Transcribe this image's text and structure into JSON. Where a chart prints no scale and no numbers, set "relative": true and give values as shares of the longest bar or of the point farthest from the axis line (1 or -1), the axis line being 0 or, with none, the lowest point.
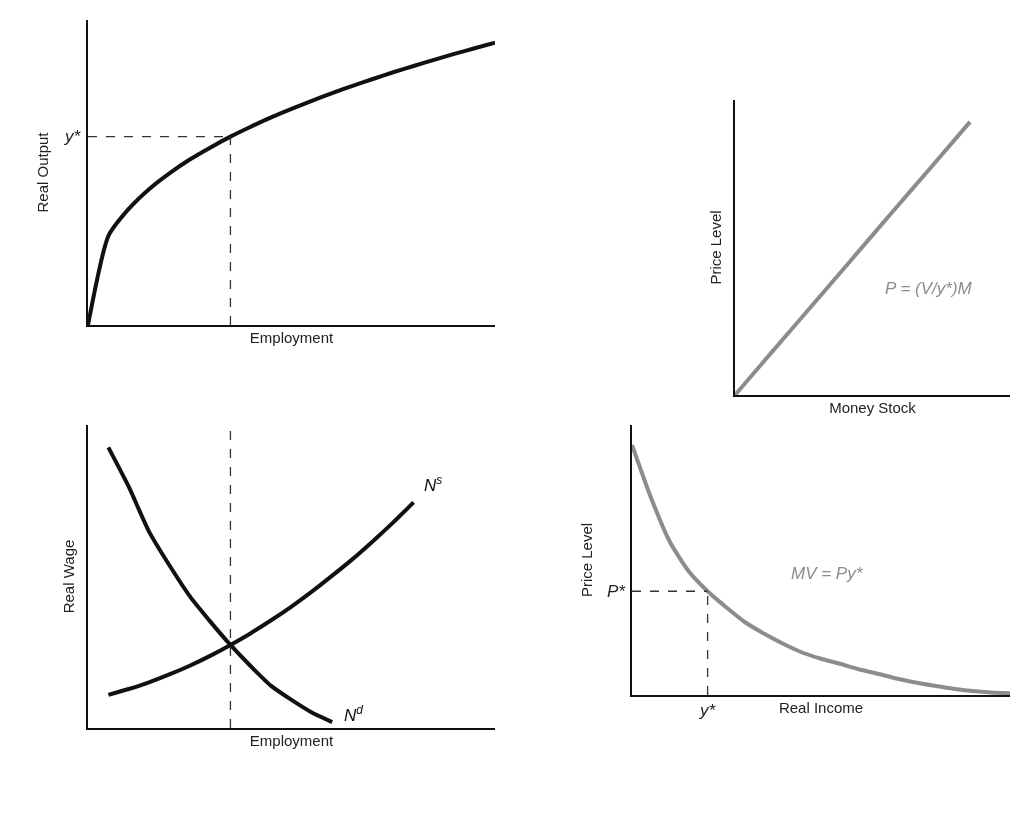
{
  "chart_data": [
    {
      "type": "line",
      "relative": true,
      "tick_labels": false,
      "ylabel": "Real Output",
      "xlabel": "Employment",
      "categories": [
        null,
        null,
        null,
        null,
        null,
        null,
        null,
        null,
        null,
        null,
        null,
        null,
        null,
        null,
        null,
        null,
        null,
        null,
        null,
        null,
        null
      ],
      "series": [
        {
          "color": "#111111",
          "values": [
            0,
            0.315,
            0.411,
            0.481,
            0.537,
            0.586,
            0.628,
            0.667,
            0.702,
            0.735,
            0.765,
            0.794,
            0.821,
            0.847,
            0.871,
            0.895,
            0.917,
            0.939,
            0.96,
            0.98,
            1.0
          ]
        }
      ],
      "ref_lines": [
        {
          "axis": "y",
          "value": 0.667,
          "label": "y*",
          "line_style": "dashed"
        },
        {
          "axis": "x",
          "line_style": "dashed"
        }
      ]
    },
    {
      "type": "line",
      "relative": true,
      "tick_labels": false,
      "ylabel": "Price Level",
      "xlabel": "Money Stock",
      "categories": [
        null,
        null,
        null,
        null,
        null,
        null,
        null
      ],
      "series": [
        {
          "name": "P = (V/y*)M",
          "color": "#8c8c8c",
          "values": [
            0,
            0.167,
            0.333,
            0.5,
            0.667,
            0.833,
            1.0
          ]
        }
      ]
    },
    {
      "type": "line",
      "relative": true,
      "tick_labels": false,
      "ylabel": "Real Wage",
      "xlabel": "Employment",
      "categories": [
        null,
        null,
        null,
        null,
        null,
        null,
        null,
        null,
        null,
        null,
        null,
        null,
        null,
        null,
        null,
        null
      ],
      "series": [
        {
          "name": "N$^{d}$",
          "color": "#111111",
          "values": [
            1.0,
            0.86,
            0.7,
            0.58,
            0.47,
            0.38,
            0.296,
            0.22,
            0.15,
            0.1,
            0.055,
            0.021,
            null,
            null,
            null,
            null
          ]
        },
        {
          "name": "N$^{s}$",
          "color": "#111111",
          "values": [
            0.118,
            0.139,
            0.163,
            0.191,
            0.222,
            0.257,
            0.296,
            0.338,
            0.384,
            0.433,
            0.486,
            0.543,
            0.602,
            0.666,
            0.733,
            0.804
          ]
        }
      ],
      "ref_lines": [
        {
          "axis": "x",
          "line_style": "dashed"
        }
      ]
    },
    {
      "type": "line",
      "relative": true,
      "tick_labels": false,
      "ylabel": "Price Level",
      "xlabel": "Real Income",
      "categories": [
        null,
        null,
        null,
        null,
        null,
        null,
        null,
        null,
        null,
        null,
        null,
        null,
        null,
        null,
        null,
        null,
        null,
        null,
        null,
        null,
        null
      ],
      "series": [
        {
          "name": "MV = Py*",
          "color": "#8c8c8c",
          "values": [
            1.0,
            0.79,
            0.613,
            0.495,
            0.415,
            0.35,
            0.29,
            0.245,
            0.205,
            0.17,
            0.145,
            0.125,
            0.103,
            0.085,
            0.066,
            0.05,
            0.037,
            0.025,
            0.016,
            0.01,
            0.007
          ]
        }
      ],
      "ref_lines": [
        {
          "axis": "y",
          "value": 0.415,
          "label": "P*",
          "line_style": "dashed"
        },
        {
          "axis": "x",
          "label": "y*",
          "line_style": "dashed"
        }
      ]
    }
  ]
}
